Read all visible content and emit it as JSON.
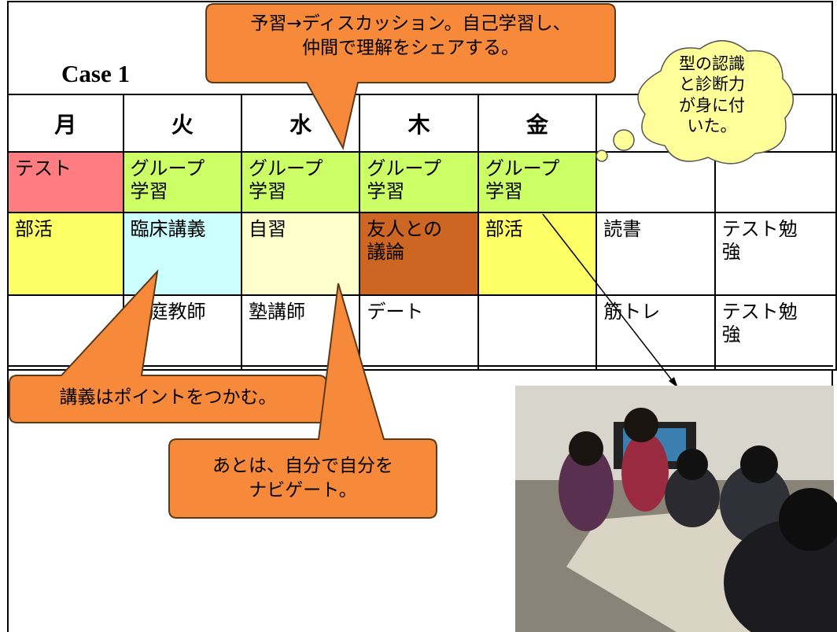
{
  "header": {
    "title": "Case 1"
  },
  "table": {
    "headers": [
      "月",
      "火",
      "水",
      "木",
      "金",
      "",
      ""
    ],
    "rows": [
      [
        {
          "text": "テスト",
          "color": "#ff7c80"
        },
        {
          "text": "グループ\n学習",
          "color": "#ccff66"
        },
        {
          "text": "グループ\n学習",
          "color": "#ccff66"
        },
        {
          "text": "グループ\n学習",
          "color": "#ccff66"
        },
        {
          "text": "グループ\n学習",
          "color": "#ccff66"
        },
        {
          "text": "",
          "color": "#ffffff"
        },
        {
          "text": "",
          "color": "#ffffff"
        }
      ],
      [
        {
          "text": "部活",
          "color": "#ffff66"
        },
        {
          "text": "臨床講義",
          "color": "#ccffff"
        },
        {
          "text": "自習",
          "color": "#ffffcc"
        },
        {
          "text": "友人との\n議論",
          "color": "#cc6622"
        },
        {
          "text": "部活",
          "color": "#ffff66"
        },
        {
          "text": "読書",
          "color": "#ffffff"
        },
        {
          "text": "テスト勉\n強",
          "color": "#ffffff"
        }
      ],
      [
        {
          "text": "",
          "color": "#ffffff"
        },
        {
          "text": "家庭教師",
          "color": "#ffffff"
        },
        {
          "text": "塾講師",
          "color": "#ffffff"
        },
        {
          "text": "デート",
          "color": "#ffffff"
        },
        {
          "text": "",
          "color": "#ffffff"
        },
        {
          "text": "筋トレ",
          "color": "#ffffff"
        },
        {
          "text": "テスト勉\n強",
          "color": "#ffffff"
        }
      ]
    ]
  },
  "callouts": [
    "予習→ディスカッション。自己学習し、\n仲間で理解をシェアする。",
    "講義はポイントをつかむ。",
    "あとは、自分で自分を\nナビゲート。"
  ],
  "thought": "型の認識\nと診断力\nが身に付\nいた。"
}
